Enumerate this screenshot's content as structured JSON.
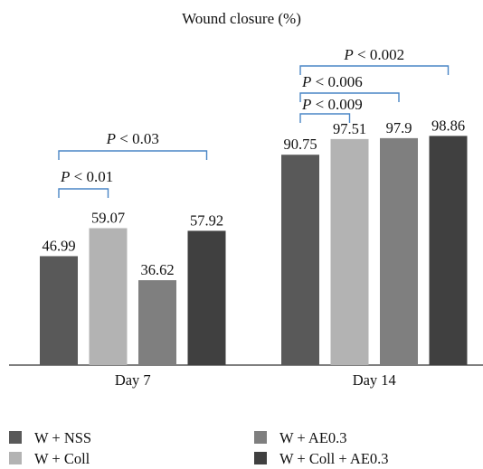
{
  "chart_data": {
    "type": "bar",
    "title": "Wound closure (%)",
    "xlabel": "",
    "ylabel": "",
    "ylim": [
      0,
      100
    ],
    "grid": false,
    "categories": [
      "Day 7",
      "Day 14"
    ],
    "series": [
      {
        "name": "W + NSS",
        "values": [
          46.99,
          90.75
        ],
        "labels": [
          "46.99",
          "90.75"
        ],
        "color": "#595959"
      },
      {
        "name": "W + Coll",
        "values": [
          59.07,
          97.51
        ],
        "labels": [
          "59.07",
          "97.51"
        ],
        "color": "#b3b3b3"
      },
      {
        "name": "W + AE0.3",
        "values": [
          36.62,
          97.9
        ],
        "labels": [
          "36.62",
          "97.9"
        ],
        "color": "#7f7f7f"
      },
      {
        "name": "W + Coll + AE0.3",
        "values": [
          57.92,
          98.86
        ],
        "labels": [
          "57.92",
          "98.86"
        ],
        "color": "#404040"
      }
    ],
    "annotations": [
      {
        "label": "P < 0.01",
        "category": "Day 7",
        "from_series": 0,
        "to_series": 1
      },
      {
        "label": "P < 0.03",
        "category": "Day 7",
        "from_series": 0,
        "to_series": 3
      },
      {
        "label": "P < 0.009",
        "category": "Day 14",
        "from_series": 0,
        "to_series": 1
      },
      {
        "label": "P < 0.006",
        "category": "Day 14",
        "from_series": 0,
        "to_series": 2
      },
      {
        "label": "P < 0.002",
        "category": "Day 14",
        "from_series": 0,
        "to_series": 3
      }
    ],
    "bracket_color": "#4a86c5",
    "legend_position": "bottom"
  }
}
